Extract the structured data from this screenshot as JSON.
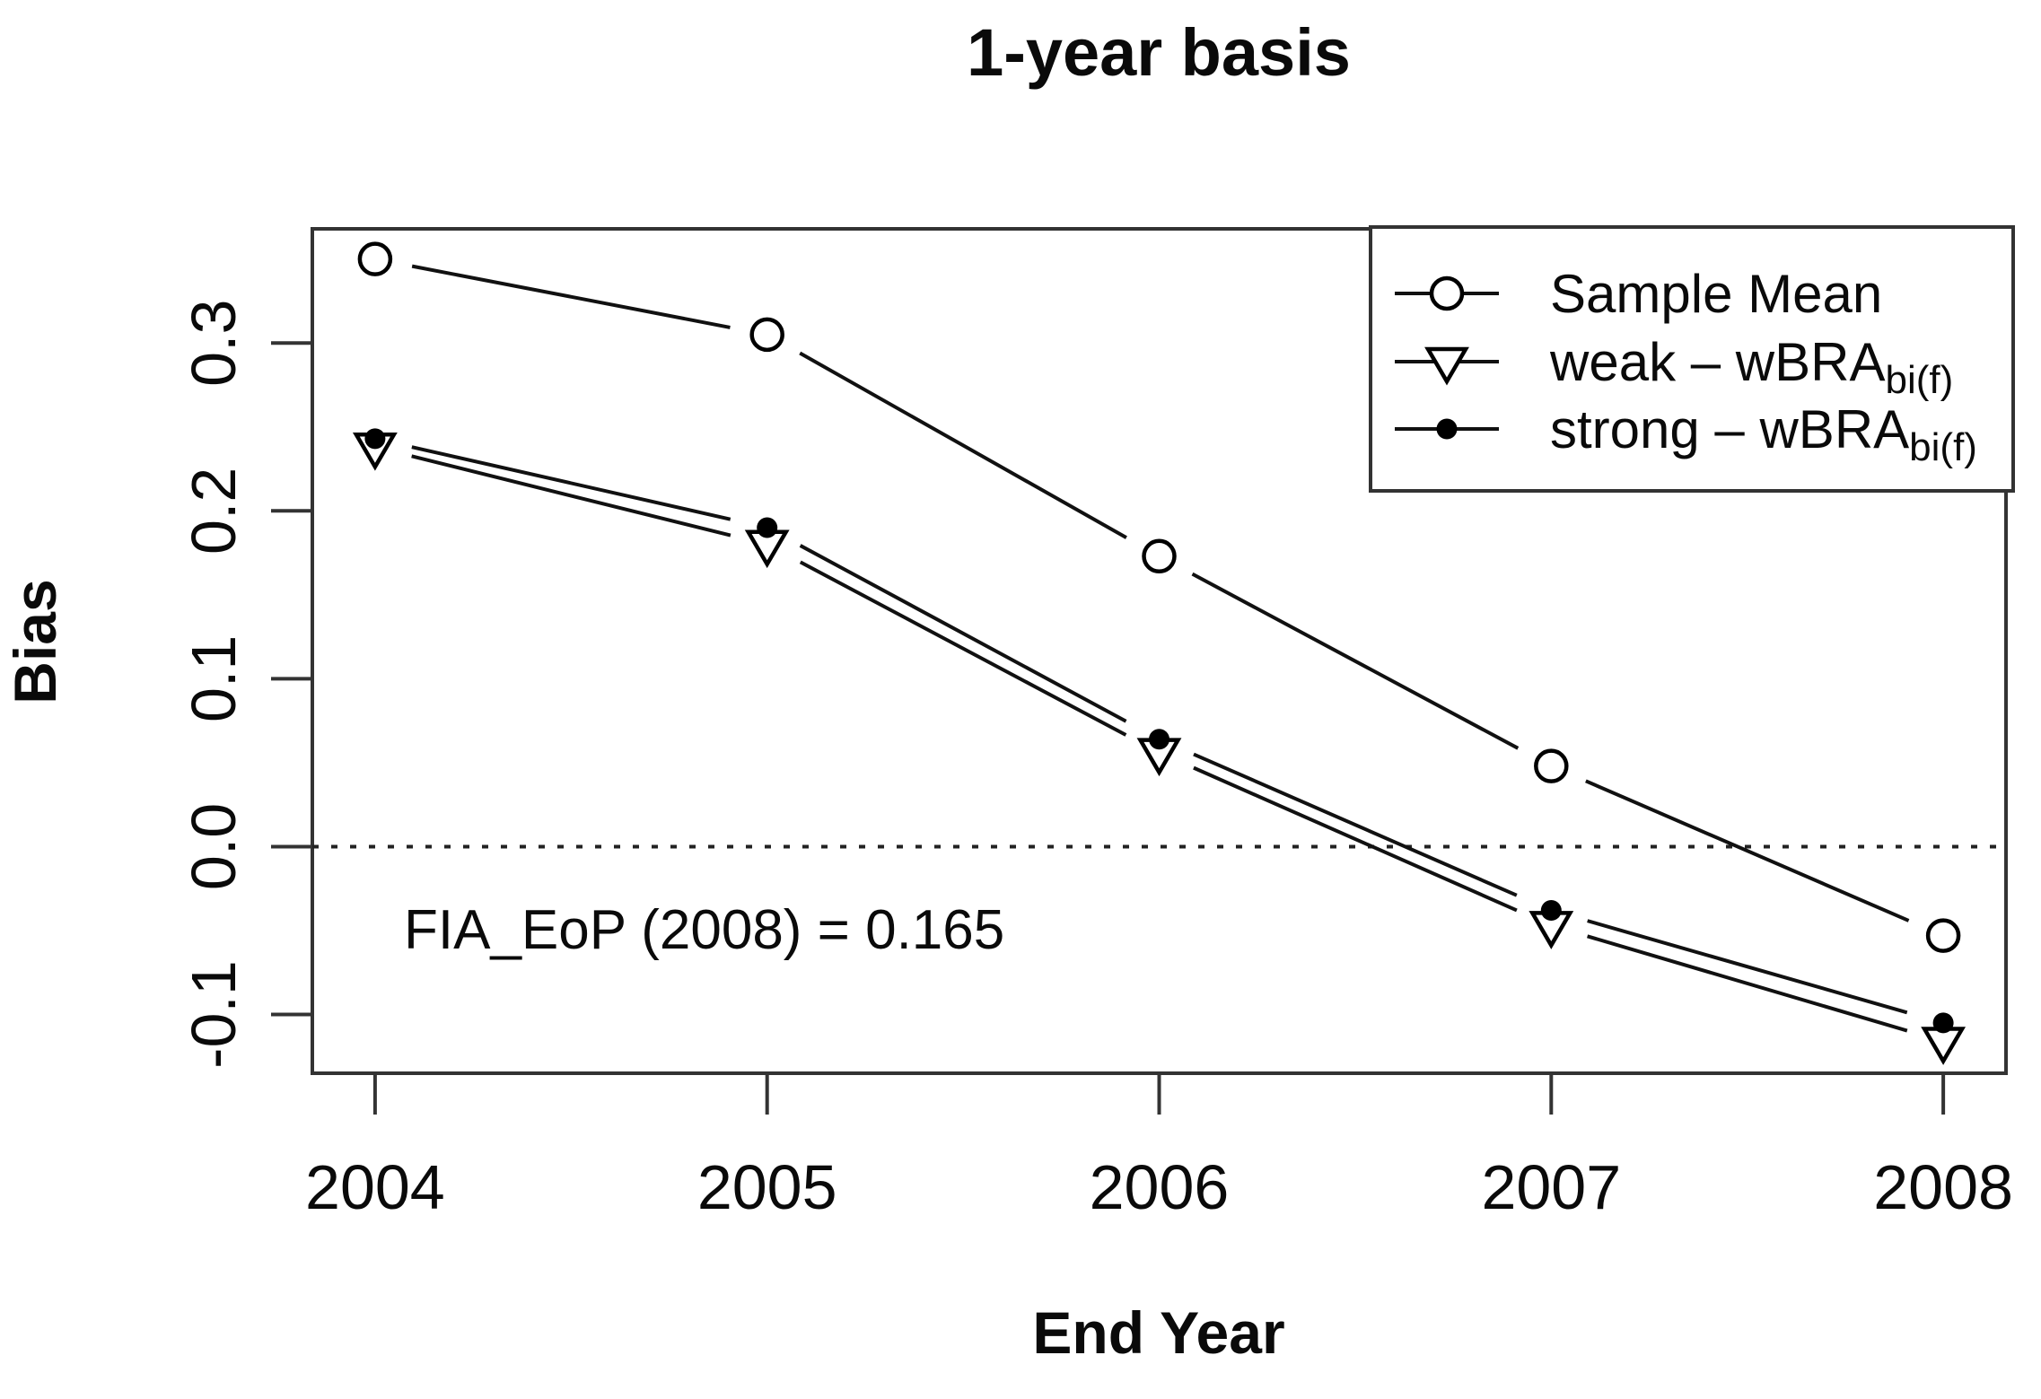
{
  "chart_data": {
    "type": "line",
    "title": "1-year basis",
    "xlabel": "End Year",
    "ylabel": "Bias",
    "x": [
      2004,
      2005,
      2006,
      2007,
      2008
    ],
    "series": [
      {
        "name": "Sample Mean",
        "marker": "open-circle",
        "values": [
          0.35,
          0.305,
          0.173,
          0.048,
          -0.053
        ]
      },
      {
        "name": "weak - wBRA bi(f)",
        "marker": "open-triangle-down",
        "values": [
          0.238,
          0.18,
          0.056,
          -0.047,
          -0.116
        ]
      },
      {
        "name": "strong - wBRA bi(f)",
        "marker": "filled-circle",
        "values": [
          0.243,
          0.19,
          0.064,
          -0.038,
          -0.105
        ]
      }
    ],
    "legend": {
      "position": "topright",
      "items": [
        {
          "label": "Sample Mean",
          "subscript": ""
        },
        {
          "label": "weak – wBRA",
          "subscript": "bi(f)"
        },
        {
          "label": "strong – wBRA",
          "subscript": "bi(f)"
        }
      ]
    },
    "xticks": {
      "values": [
        2004,
        2005,
        2006,
        2007,
        2008
      ],
      "labels": [
        "2004",
        "2005",
        "2006",
        "2007",
        "2008"
      ]
    },
    "yticks": {
      "values": [
        -0.1,
        0.0,
        0.1,
        0.2,
        0.3
      ],
      "labels": [
        "-0.1",
        "0.0",
        "0.1",
        "0.2",
        "0.3"
      ]
    },
    "xlim": [
      2003.84,
      2008.16
    ],
    "ylim": [
      -0.135,
      0.368
    ],
    "reference_line_y": 0.0,
    "annotation": "FIA_EoP (2008) = 0.165",
    "grid": false
  }
}
